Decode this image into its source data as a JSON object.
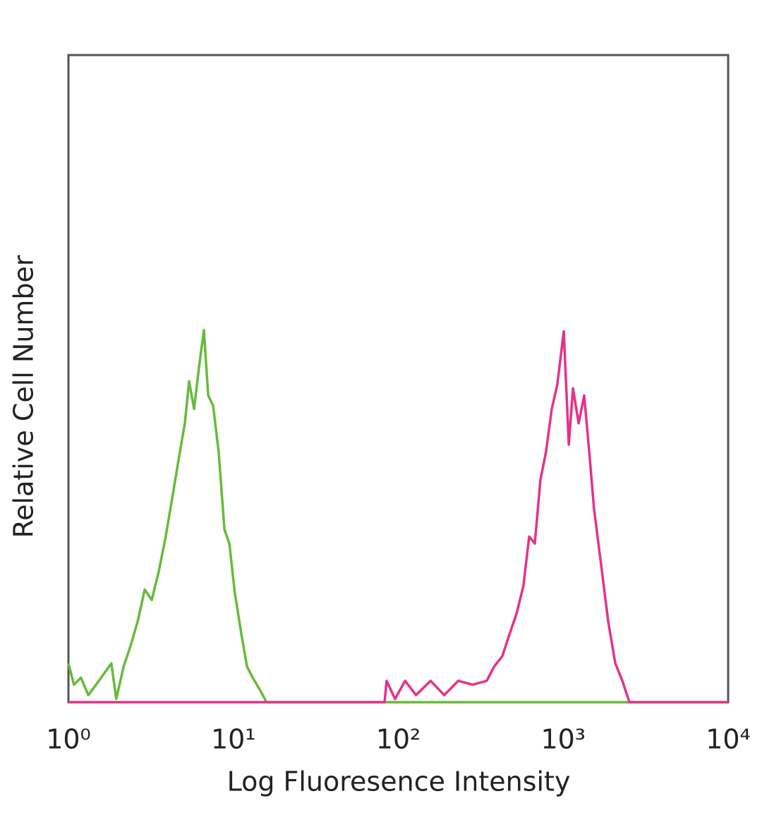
{
  "chart_data": {
    "type": "line",
    "x_label": "Log Fluoresence Intensity",
    "y_label": "Relative Cell Number",
    "xscale": "log",
    "xlim": [
      1,
      10000
    ],
    "ylim": [
      0,
      100
    ],
    "xticks": [
      {
        "value": 1,
        "label": "10⁰"
      },
      {
        "value": 10,
        "label": "10¹"
      },
      {
        "value": 100,
        "label": "10²"
      },
      {
        "value": 1000,
        "label": "10³"
      },
      {
        "value": 10000,
        "label": "10⁴"
      }
    ],
    "series": [
      {
        "color": "#66bb3a",
        "x": [
          1,
          1.08,
          1.19,
          1.32,
          1.53,
          1.82,
          1.95,
          2.16,
          2.38,
          2.63,
          2.9,
          3.2,
          3.53,
          3.89,
          4.3,
          4.74,
          5.08,
          5.39,
          5.78,
          6.19,
          6.63,
          7.04,
          7.54,
          8.14,
          8.83,
          9.46,
          10.2,
          11.2,
          12.1,
          13.1,
          14.7,
          15.9,
          10000
        ],
        "values": [
          6.0,
          2.7,
          3.8,
          1.1,
          3.3,
          6.0,
          0.5,
          5.5,
          8.7,
          12.5,
          17.4,
          15.8,
          20.2,
          25.6,
          32.2,
          38.7,
          43.1,
          49.6,
          45.3,
          51.8,
          57.5,
          47.4,
          45.8,
          38.7,
          26.7,
          24.5,
          16.9,
          10.4,
          5.5,
          3.8,
          1.6,
          0,
          0
        ]
      },
      {
        "color": "#e5318a",
        "x": [
          1,
          82.6,
          84.9,
          95.6,
          110,
          128,
          157,
          190,
          231,
          282,
          344,
          381,
          427,
          471,
          520,
          574,
          622,
          673,
          728,
          787,
          852,
          921,
          1007,
          1081,
          1146,
          1240,
          1341,
          1450,
          1536,
          1696,
          1873,
          2069,
          2283,
          2521,
          10000
        ],
        "values": [
          0,
          0,
          3.3,
          0.5,
          3.3,
          1.1,
          3.3,
          1.1,
          3.3,
          2.7,
          3.3,
          5.5,
          7.1,
          10.4,
          13.6,
          18.0,
          25.6,
          24.5,
          34.4,
          38.7,
          45.3,
          49.1,
          57.3,
          39.8,
          48.5,
          43.1,
          47.4,
          37.6,
          30.0,
          21.3,
          12.5,
          6.0,
          3.3,
          0,
          0
        ]
      }
    ]
  }
}
